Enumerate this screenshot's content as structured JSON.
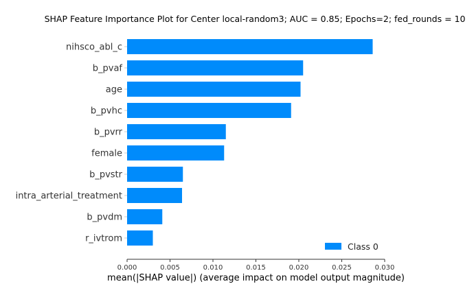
{
  "chart_data": {
    "type": "bar",
    "orientation": "horizontal",
    "title": "SHAP Feature Importance Plot for Center local-random3; AUC = 0.85; Epochs=2; fed_rounds = 10",
    "xlabel": "mean(|SHAP value|) (average impact on model output magnitude)",
    "ylabel": "",
    "xlim": [
      0,
      0.03
    ],
    "xticks": [
      "0.000",
      "0.005",
      "0.010",
      "0.015",
      "0.020",
      "0.025",
      "0.030"
    ],
    "xtick_values": [
      0,
      0.005,
      0.01,
      0.015,
      0.02,
      0.025,
      0.03
    ],
    "categories": [
      "nihsco_abl_c",
      "b_pvaf",
      "age",
      "b_pvhc",
      "b_pvrr",
      "female",
      "b_pvstr",
      "intra_arterial_treatment",
      "b_pvdm",
      "r_ivtrom"
    ],
    "series": [
      {
        "name": "Class 0",
        "color": "#008bfb",
        "values": [
          0.0286,
          0.0205,
          0.0202,
          0.0191,
          0.0115,
          0.0113,
          0.0065,
          0.0064,
          0.0041,
          0.003
        ]
      }
    ],
    "legend_position": "bottom-right",
    "grid": false
  }
}
